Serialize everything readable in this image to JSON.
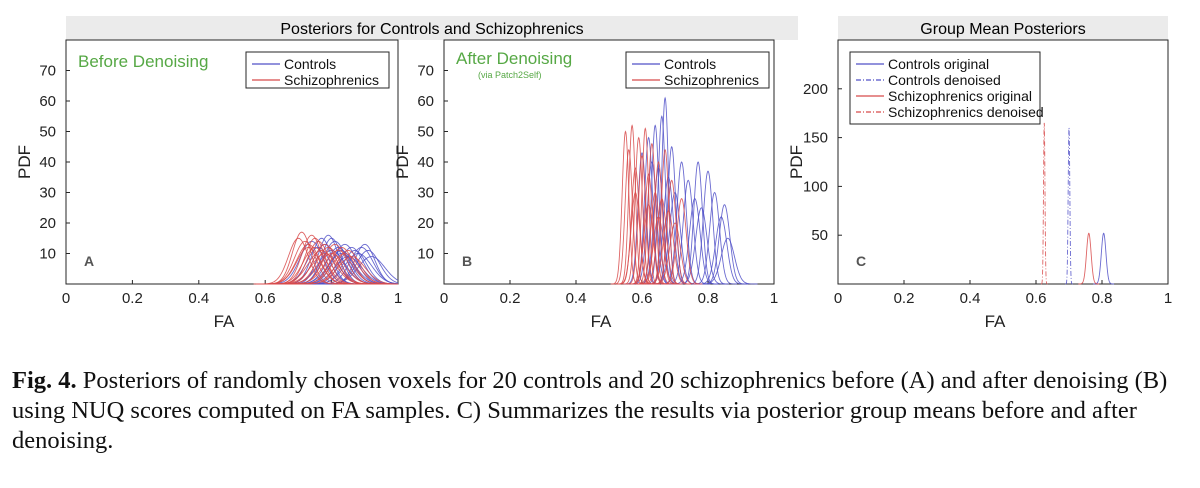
{
  "figure": {
    "banner_left": "Posteriors for Controls and Schizophrenics",
    "banner_right": "Group Mean Posteriors"
  },
  "caption": {
    "label": "Fig. 4.",
    "text": "Posteriors of randomly chosen voxels for 20 controls and 20 schizophrenics before (A) and after denoising (B) using NUQ scores computed on FA samples. C) Summarizes the results via posterior group means before and after denoising."
  },
  "chart_data": [
    {
      "type": "line",
      "panel_letter": "A",
      "annotation": "Before Denoising",
      "annotation_color": "#56a845",
      "xlabel": "FA",
      "ylabel": "PDF",
      "xlim": [
        0,
        1
      ],
      "ylim": [
        0,
        80
      ],
      "xticks": [
        0,
        0.2,
        0.4,
        0.6,
        0.8,
        1
      ],
      "xtick_labels": [
        "0",
        "0.2",
        "0.4",
        "0.6",
        "0.8",
        "1"
      ],
      "yticks": [
        10,
        20,
        30,
        40,
        50,
        60,
        70
      ],
      "legend_position": "top-right",
      "series": [
        {
          "name": "Controls",
          "color": "#5050c8",
          "linestyle": "solid",
          "peaks": [
            [
              0.74,
              14
            ],
            [
              0.76,
              12
            ],
            [
              0.77,
              15
            ],
            [
              0.78,
              13
            ],
            [
              0.79,
              16
            ],
            [
              0.8,
              11
            ],
            [
              0.81,
              14
            ],
            [
              0.82,
              12
            ],
            [
              0.83,
              10
            ],
            [
              0.84,
              13
            ],
            [
              0.85,
              9
            ],
            [
              0.86,
              12
            ],
            [
              0.87,
              11
            ],
            [
              0.88,
              10
            ],
            [
              0.89,
              12
            ],
            [
              0.9,
              13
            ],
            [
              0.91,
              11
            ],
            [
              0.92,
              9
            ],
            [
              0.8,
              15
            ],
            [
              0.83,
              11
            ]
          ],
          "widths": [
            0.035,
            0.035,
            0.03,
            0.035,
            0.03,
            0.04,
            0.035,
            0.035,
            0.04,
            0.035,
            0.04,
            0.035,
            0.035,
            0.04,
            0.035,
            0.03,
            0.035,
            0.04,
            0.03,
            0.035
          ]
        },
        {
          "name": "Schizophrenics",
          "color": "#d84a4a",
          "linestyle": "solid",
          "peaks": [
            [
              0.7,
              15
            ],
            [
              0.71,
              17
            ],
            [
              0.72,
              14
            ],
            [
              0.73,
              13
            ],
            [
              0.74,
              16
            ],
            [
              0.75,
              12
            ],
            [
              0.76,
              14
            ],
            [
              0.77,
              11
            ],
            [
              0.78,
              13
            ],
            [
              0.79,
              12
            ],
            [
              0.8,
              10
            ],
            [
              0.81,
              13
            ],
            [
              0.82,
              11
            ],
            [
              0.83,
              12
            ],
            [
              0.84,
              10
            ],
            [
              0.85,
              11
            ],
            [
              0.86,
              9
            ],
            [
              0.73,
              12
            ],
            [
              0.75,
              15
            ],
            [
              0.78,
              10
            ]
          ],
          "widths": [
            0.03,
            0.028,
            0.032,
            0.035,
            0.03,
            0.035,
            0.032,
            0.04,
            0.035,
            0.035,
            0.04,
            0.035,
            0.04,
            0.035,
            0.04,
            0.035,
            0.04,
            0.035,
            0.03,
            0.04
          ]
        }
      ]
    },
    {
      "type": "line",
      "panel_letter": "B",
      "annotation": "After Denoising",
      "annotation_sub": "(via Patch2Self)",
      "annotation_color": "#56a845",
      "xlabel": "FA",
      "ylabel": "PDF",
      "xlim": [
        0,
        1
      ],
      "ylim": [
        0,
        80
      ],
      "xticks": [
        0,
        0.2,
        0.4,
        0.6,
        0.8,
        1
      ],
      "xtick_labels": [
        "0",
        "0.2",
        "0.4",
        "0.6",
        "0.8",
        "1"
      ],
      "yticks": [
        10,
        20,
        30,
        40,
        50,
        60,
        70
      ],
      "legend_position": "top-right",
      "series": [
        {
          "name": "Controls",
          "color": "#5050c8",
          "linestyle": "solid",
          "peaks": [
            [
              0.6,
              43
            ],
            [
              0.62,
              48
            ],
            [
              0.63,
              40
            ],
            [
              0.64,
              52
            ],
            [
              0.65,
              38
            ],
            [
              0.66,
              55
            ],
            [
              0.67,
              61
            ],
            [
              0.68,
              35
            ],
            [
              0.69,
              45
            ],
            [
              0.7,
              30
            ],
            [
              0.72,
              40
            ],
            [
              0.74,
              34
            ],
            [
              0.76,
              28
            ],
            [
              0.77,
              40
            ],
            [
              0.78,
              25
            ],
            [
              0.8,
              37
            ],
            [
              0.82,
              30
            ],
            [
              0.84,
              22
            ],
            [
              0.85,
              26
            ],
            [
              0.86,
              15
            ]
          ],
          "widths": [
            0.012,
            0.012,
            0.014,
            0.011,
            0.014,
            0.011,
            0.01,
            0.015,
            0.012,
            0.016,
            0.014,
            0.015,
            0.016,
            0.013,
            0.017,
            0.014,
            0.015,
            0.017,
            0.016,
            0.02
          ]
        },
        {
          "name": "Schizophrenics",
          "color": "#d84a4a",
          "linestyle": "solid",
          "peaks": [
            [
              0.55,
              50
            ],
            [
              0.56,
              44
            ],
            [
              0.57,
              52
            ],
            [
              0.58,
              38
            ],
            [
              0.59,
              48
            ],
            [
              0.6,
              42
            ],
            [
              0.61,
              51
            ],
            [
              0.62,
              36
            ],
            [
              0.63,
              46
            ],
            [
              0.64,
              30
            ],
            [
              0.65,
              40
            ],
            [
              0.66,
              28
            ],
            [
              0.67,
              44
            ],
            [
              0.68,
              24
            ],
            [
              0.69,
              34
            ],
            [
              0.7,
              20
            ],
            [
              0.72,
              28
            ],
            [
              0.58,
              30
            ],
            [
              0.62,
              26
            ],
            [
              0.65,
              22
            ]
          ],
          "widths": [
            0.01,
            0.011,
            0.01,
            0.012,
            0.011,
            0.011,
            0.01,
            0.012,
            0.011,
            0.013,
            0.012,
            0.014,
            0.011,
            0.015,
            0.013,
            0.016,
            0.014,
            0.013,
            0.014,
            0.015
          ]
        }
      ]
    },
    {
      "type": "line",
      "panel_letter": "C",
      "xlabel": "FA",
      "ylabel": "PDF",
      "xlim": [
        0,
        1
      ],
      "ylim": [
        0,
        250
      ],
      "xticks": [
        0,
        0.2,
        0.4,
        0.6,
        0.8,
        1
      ],
      "xtick_labels": [
        "0",
        "0.2",
        "0.4",
        "0.6",
        "0.8",
        "1"
      ],
      "yticks": [
        50,
        100,
        150,
        200
      ],
      "legend_position": "top-left",
      "series": [
        {
          "name": "Controls original",
          "color": "#5050c8",
          "linestyle": "solid",
          "peaks": [
            [
              0.805,
              52
            ]
          ],
          "widths": [
            0.007
          ]
        },
        {
          "name": "Controls denoised",
          "color": "#5050c8",
          "linestyle": "dashdot",
          "peaks": [
            [
              0.7,
              160
            ]
          ],
          "widths": [
            0.0025
          ]
        },
        {
          "name": "Schizophrenics original",
          "color": "#d84a4a",
          "linestyle": "solid",
          "peaks": [
            [
              0.76,
              52
            ]
          ],
          "widths": [
            0.007
          ]
        },
        {
          "name": "Schizophrenics denoised",
          "color": "#d84a4a",
          "linestyle": "dashdot",
          "peaks": [
            [
              0.625,
              165
            ]
          ],
          "widths": [
            0.0022
          ]
        }
      ]
    }
  ]
}
